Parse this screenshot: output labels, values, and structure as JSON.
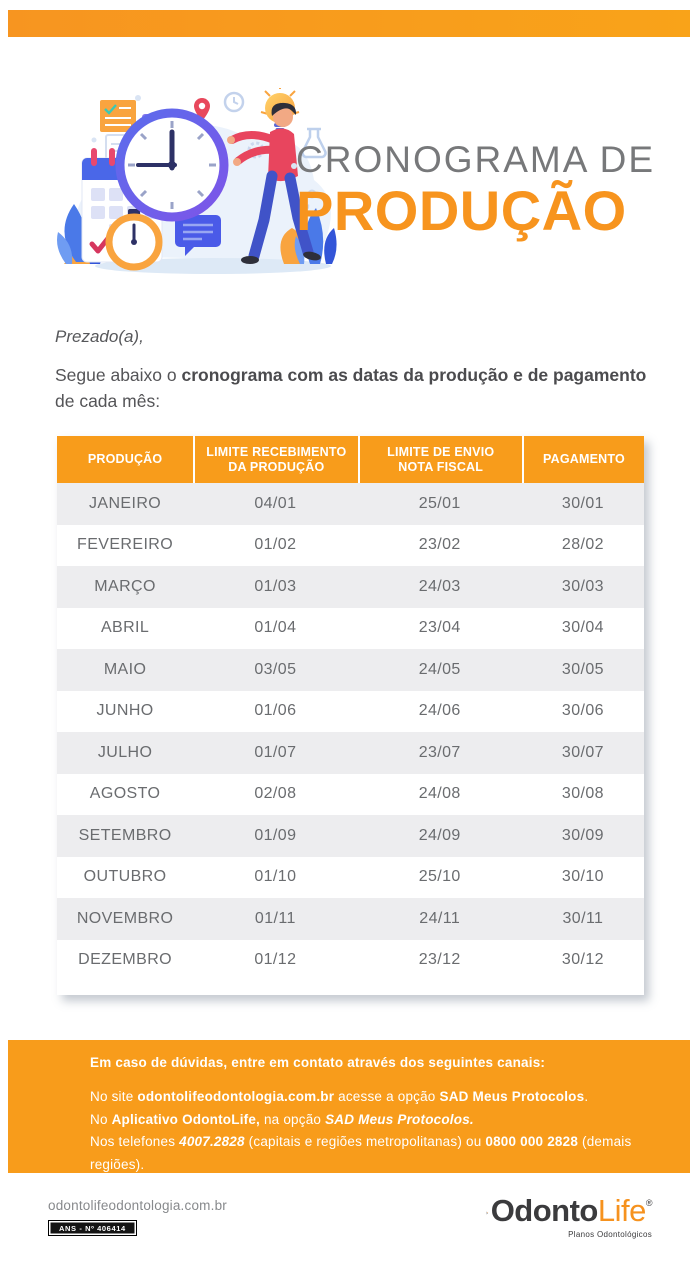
{
  "colors": {
    "brand_orange": "#F7941E",
    "bar_orange": "#F89C1B",
    "row_gray": "#EDEDEF",
    "table_text_gray": "#6A6C6F",
    "title_gray": "#77787A"
  },
  "header": {
    "title_line1": "CRONOGRAMA DE",
    "title_line2": "PRODUÇÃO",
    "illustration": "clock-calendar-person-illustration"
  },
  "intro": {
    "salutation": "Prezado(a),",
    "text_prefix": "Segue abaixo o ",
    "text_bold": "cronograma com as datas da produção e de pagamento",
    "text_suffix": " de cada mês:"
  },
  "table": {
    "headers": [
      {
        "line1": "PRODUÇÃO",
        "line2": ""
      },
      {
        "line1": "LIMITE RECEBIMENTO",
        "line2": "DA PRODUÇÃO"
      },
      {
        "line1": "LIMITE DE ENVIO",
        "line2": "NOTA FISCAL"
      },
      {
        "line1": "PAGAMENTO",
        "line2": ""
      }
    ],
    "rows": [
      [
        "JANEIRO",
        "04/01",
        "25/01",
        "30/01"
      ],
      [
        "FEVEREIRO",
        "01/02",
        "23/02",
        "28/02"
      ],
      [
        "MARÇO",
        "01/03",
        "24/03",
        "30/03"
      ],
      [
        "ABRIL",
        "01/04",
        "23/04",
        "30/04"
      ],
      [
        "MAIO",
        "03/05",
        "24/05",
        "30/05"
      ],
      [
        "JUNHO",
        "01/06",
        "24/06",
        "30/06"
      ],
      [
        "JULHO",
        "01/07",
        "23/07",
        "30/07"
      ],
      [
        "AGOSTO",
        "02/08",
        "24/08",
        "30/08"
      ],
      [
        "SETEMBRO",
        "01/09",
        "24/09",
        "30/09"
      ],
      [
        "OUTUBRO",
        "01/10",
        "25/10",
        "30/10"
      ],
      [
        "NOVEMBRO",
        "01/11",
        "24/11",
        "30/11"
      ],
      [
        "DEZEMBRO",
        "01/12",
        "23/12",
        "30/12"
      ]
    ]
  },
  "contact_box": {
    "heading": "Em caso de dúvidas, entre em contato através dos seguintes canais:",
    "site": {
      "t1": "No site ",
      "b1": "odontolifeodontologia.com.br",
      "t2": " acesse a opção ",
      "b2": "SAD Meus Protocolos",
      "t3": "."
    },
    "app": {
      "t1": "No ",
      "b1": "Aplicativo OdontoLife,",
      "t2": " na opção ",
      "bi1": "SAD Meus Protocolos."
    },
    "phones": {
      "t1": "Nos telefones ",
      "bi1": "4007.2828",
      "t2": " (capitais e regiões metropolitanas) ou ",
      "b1": "0800 000 2828",
      "t3": " (demais regiões)."
    }
  },
  "footer": {
    "website": "odontolifeodontologia.com.br",
    "ans_badge": "ANS - Nº 406414",
    "logo_part1": "Odonto",
    "logo_part2": "Life",
    "logo_registered": "®",
    "logo_tagline": "Planos Odontológicos"
  }
}
